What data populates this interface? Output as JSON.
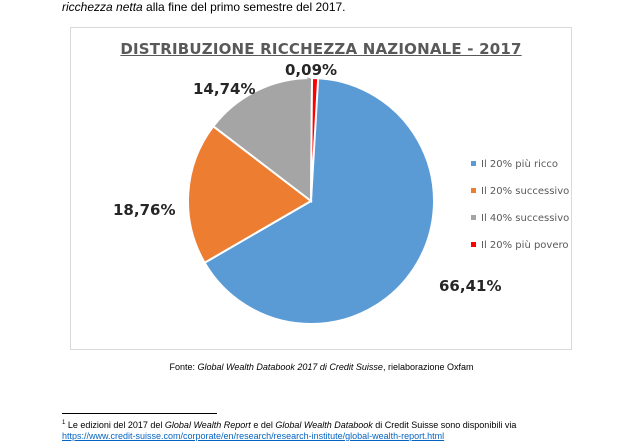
{
  "intro": {
    "italic": "ricchezza netta",
    "text": " alla fine del primo semestre del 2017."
  },
  "chart_data": {
    "type": "pie",
    "title": "DISTRIBUZIONE RICCHEZZA NAZIONALE - 2017",
    "legend_position": "right",
    "slices": [
      {
        "name": "Il 20% più ricco",
        "value": 66.41,
        "label": "66,41%",
        "color": "#5b9bd5"
      },
      {
        "name": "Il 20% successivo",
        "value": 18.76,
        "label": "18,76%",
        "color": "#ed7d31"
      },
      {
        "name": "Il 40% successivo",
        "value": 14.74,
        "label": "14,74%",
        "color": "#a5a5a5"
      },
      {
        "name": "Il 20% più povero",
        "value": 0.09,
        "label": "0,09%",
        "color": "#ff0000"
      }
    ]
  },
  "source": {
    "prefix": "Fonte: ",
    "italic": "Global Wealth Databook 2017 di Credit Suisse",
    "suffix": ", rielaborazione Oxfam"
  },
  "footnote": {
    "number": "1",
    "part1": " Le edizioni del 2017 del ",
    "italic1": "Global Wealth Report",
    "part2": " e del ",
    "italic2": "Global Wealth Databook",
    "part3": " di Credit Suisse sono disponibili via",
    "link": "https://www.credit-suisse.com/corporate/en/research/research-institute/global-wealth-report.html"
  }
}
